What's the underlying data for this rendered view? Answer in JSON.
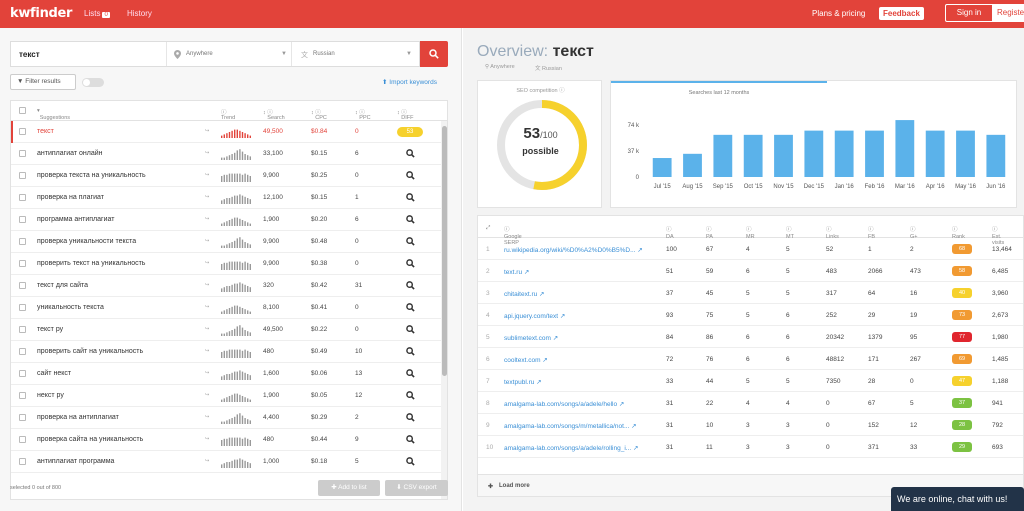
{
  "header": {
    "logo": "kwfinder",
    "nav": [
      {
        "label": "Lists",
        "badge": "0"
      },
      {
        "label": "History"
      }
    ],
    "plans": "Plans & pricing",
    "feedback": "Feedback",
    "signin": "Sign in",
    "register": "Register"
  },
  "search": {
    "keyword": "текст",
    "location": "Anywhere",
    "language": "Russian"
  },
  "filters": {
    "label": "Filter results",
    "toggle": "off",
    "import": "Import keywords"
  },
  "table": {
    "headers": [
      "Suggestions",
      "Trend",
      "Search",
      "CPC",
      "PPC",
      "DIFF"
    ],
    "rows": [
      {
        "kw": "текст",
        "sv": "49,500",
        "cpc": "$0.84",
        "ppc": "0",
        "diff": "53",
        "selected": true
      },
      {
        "kw": "антиплагиат онлайн",
        "sv": "33,100",
        "cpc": "$0.15",
        "ppc": "6"
      },
      {
        "kw": "проверка текста на уникальность",
        "sv": "9,900",
        "cpc": "$0.25",
        "ppc": "0"
      },
      {
        "kw": "проверка на плагиат",
        "sv": "12,100",
        "cpc": "$0.15",
        "ppc": "1"
      },
      {
        "kw": "программа антиплагиат",
        "sv": "1,900",
        "cpc": "$0.20",
        "ppc": "6"
      },
      {
        "kw": "проверка уникальности текста",
        "sv": "9,900",
        "cpc": "$0.48",
        "ppc": "0"
      },
      {
        "kw": "проверить текст на уникальность",
        "sv": "9,900",
        "cpc": "$0.38",
        "ppc": "0"
      },
      {
        "kw": "текст для сайта",
        "sv": "320",
        "cpc": "$0.42",
        "ppc": "31"
      },
      {
        "kw": "уникальность текста",
        "sv": "8,100",
        "cpc": "$0.41",
        "ppc": "0"
      },
      {
        "kw": "текст ру",
        "sv": "49,500",
        "cpc": "$0.22",
        "ppc": "0"
      },
      {
        "kw": "проверить сайт на уникальность",
        "sv": "480",
        "cpc": "$0.49",
        "ppc": "10"
      },
      {
        "kw": "сайт некст",
        "sv": "1,600",
        "cpc": "$0.06",
        "ppc": "13"
      },
      {
        "kw": "некст ру",
        "sv": "1,900",
        "cpc": "$0.05",
        "ppc": "12"
      },
      {
        "kw": "проверка на антиплагиат",
        "sv": "4,400",
        "cpc": "$0.29",
        "ppc": "2"
      },
      {
        "kw": "проверка сайта на уникальность",
        "sv": "480",
        "cpc": "$0.44",
        "ppc": "9"
      },
      {
        "kw": "антиплагиат программа",
        "sv": "1,000",
        "cpc": "$0.18",
        "ppc": "5"
      }
    ]
  },
  "footer": {
    "selected": "selected 0 out of 800",
    "add": "Add to list",
    "csv": "CSV export"
  },
  "overview": {
    "prefix": "Overview:",
    "keyword": "текст",
    "location": "Anywhere",
    "language": "Russian"
  },
  "seo": {
    "label": "SEO competition",
    "score": "53",
    "max": "/100",
    "verdict": "possible",
    "value": 53
  },
  "chart_data": {
    "type": "bar",
    "title": "Searches last 12 months",
    "categories": [
      "Jul '15",
      "Aug '15",
      "Sep '15",
      "Oct '15",
      "Nov '15",
      "Dec '15",
      "Jan '16",
      "Feb '16",
      "Mar '16",
      "Apr '16",
      "May '16",
      "Jun '16"
    ],
    "values": [
      27000,
      33000,
      60000,
      60000,
      60000,
      66000,
      66000,
      66000,
      81000,
      66000,
      66000,
      60000
    ],
    "yticks": [
      "74 k",
      "37 k",
      "0"
    ],
    "ylim": [
      0,
      74000
    ],
    "color": "#5bb2ea"
  },
  "serp": {
    "headers": [
      "Google SERP",
      "DA",
      "PA",
      "MR",
      "MT",
      "Links",
      "FB",
      "G+",
      "Rank",
      "Est. visits"
    ],
    "rows": [
      {
        "n": "1",
        "url": "ru.wikipedia.org/wiki/%D0%A2%D0%B5%D...",
        "da": "100",
        "pa": "67",
        "mr": "4",
        "mt": "5",
        "links": "52",
        "fb": "1",
        "gp": "2",
        "rank": "68",
        "visits": "13,464"
      },
      {
        "n": "2",
        "url": "text.ru",
        "da": "51",
        "pa": "59",
        "mr": "6",
        "mt": "5",
        "links": "483",
        "fb": "2066",
        "gp": "473",
        "rank": "58",
        "visits": "6,485"
      },
      {
        "n": "3",
        "url": "chitaitext.ru",
        "da": "37",
        "pa": "45",
        "mr": "5",
        "mt": "5",
        "links": "317",
        "fb": "64",
        "gp": "16",
        "rank": "40",
        "visits": "3,960"
      },
      {
        "n": "4",
        "url": "api.jquery.com/text",
        "da": "93",
        "pa": "75",
        "mr": "5",
        "mt": "6",
        "links": "252",
        "fb": "29",
        "gp": "19",
        "rank": "73",
        "visits": "2,673"
      },
      {
        "n": "5",
        "url": "sublimetext.com",
        "da": "84",
        "pa": "86",
        "mr": "6",
        "mt": "6",
        "links": "20342",
        "fb": "1379",
        "gp": "95",
        "rank": "77",
        "visits": "1,980"
      },
      {
        "n": "6",
        "url": "cooltext.com",
        "da": "72",
        "pa": "76",
        "mr": "6",
        "mt": "6",
        "links": "48812",
        "fb": "171",
        "gp": "267",
        "rank": "69",
        "visits": "1,485"
      },
      {
        "n": "7",
        "url": "textpubl.ru",
        "da": "33",
        "pa": "44",
        "mr": "5",
        "mt": "5",
        "links": "7350",
        "fb": "28",
        "gp": "0",
        "rank": "47",
        "visits": "1,188"
      },
      {
        "n": "8",
        "url": "amalgama-lab.com/songs/a/adele/hello",
        "da": "31",
        "pa": "22",
        "mr": "4",
        "mt": "4",
        "links": "0",
        "fb": "67",
        "gp": "5",
        "rank": "37",
        "visits": "941"
      },
      {
        "n": "9",
        "url": "amalgama-lab.com/songs/m/metallica/not...",
        "da": "31",
        "pa": "10",
        "mr": "3",
        "mt": "3",
        "links": "0",
        "fb": "152",
        "gp": "12",
        "rank": "28",
        "visits": "792"
      },
      {
        "n": "10",
        "url": "amalgama-lab.com/songs/a/adele/rolling_i...",
        "da": "31",
        "pa": "11",
        "mr": "3",
        "mt": "3",
        "links": "0",
        "fb": "371",
        "gp": "33",
        "rank": "29",
        "visits": "693"
      }
    ],
    "rank_colors": {
      "green": "#7cc242",
      "yellow": "#f6d12d",
      "orange": "#f19a32",
      "red": "#e0262e"
    },
    "load_more": "Load more"
  },
  "chat": "We are online, chat with us!"
}
